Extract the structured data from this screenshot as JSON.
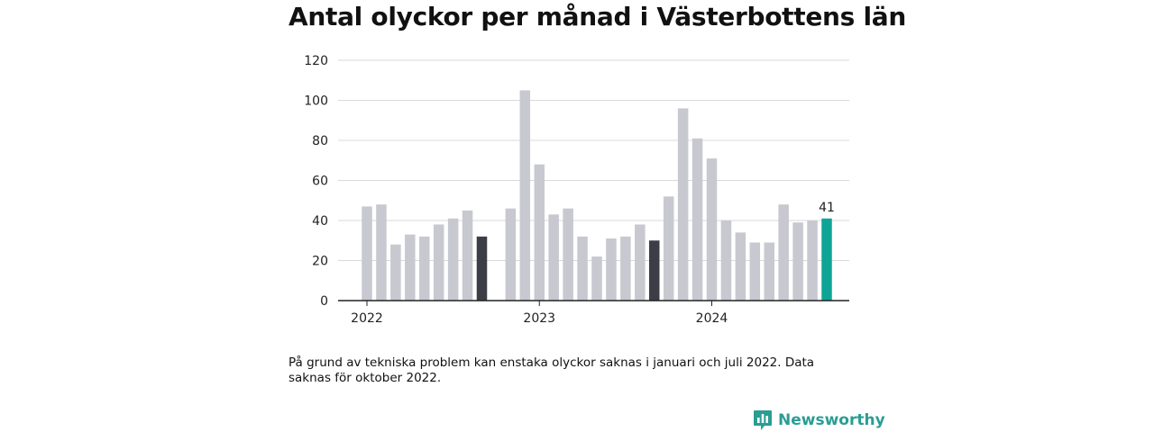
{
  "title": "Antal olyckor per månad i Västerbottens län",
  "note": "På grund av tekniska problem kan enstaka olyckor saknas i januari och juli 2022. Data saknas för oktober 2022.",
  "brand": {
    "name": "Newsworthy",
    "icon": "newsworthy-logo-icon"
  },
  "colors": {
    "default": "#c8c8d0",
    "highlight": "#3d3d47",
    "latest": "#0fa596",
    "axis": "#222222",
    "grid": "#d9d9d9"
  },
  "chart_data": {
    "type": "bar",
    "title": "Antal olyckor per månad i Västerbottens län",
    "xlabel": "",
    "ylabel": "",
    "ylim": [
      0,
      120
    ],
    "yticks": [
      0,
      20,
      40,
      60,
      80,
      100,
      120
    ],
    "year_labels": [
      {
        "label": "2022",
        "month_index": 0
      },
      {
        "label": "2023",
        "month_index": 12
      },
      {
        "label": "2024",
        "month_index": 24
      }
    ],
    "grid": true,
    "months": [
      "2022-01",
      "2022-02",
      "2022-03",
      "2022-04",
      "2022-05",
      "2022-06",
      "2022-07",
      "2022-08",
      "2022-09",
      "2022-10",
      "2022-11",
      "2022-12",
      "2023-01",
      "2023-02",
      "2023-03",
      "2023-04",
      "2023-05",
      "2023-06",
      "2023-07",
      "2023-08",
      "2023-09",
      "2023-10",
      "2023-11",
      "2023-12",
      "2024-01",
      "2024-02",
      "2024-03",
      "2024-04",
      "2024-05",
      "2024-06",
      "2024-07",
      "2024-08",
      "2024-09",
      "2024-10"
    ],
    "values": [
      47,
      48,
      28,
      33,
      32,
      38,
      41,
      45,
      32,
      null,
      46,
      105,
      68,
      43,
      46,
      32,
      22,
      31,
      32,
      38,
      30,
      52,
      96,
      81,
      71,
      40,
      34,
      29,
      29,
      48,
      39,
      40,
      41,
      null
    ],
    "highlight_months": [
      "2022-09",
      "2023-09"
    ],
    "latest_month": "2024-09",
    "data_labels": [
      {
        "month": "2024-09",
        "text": "41"
      }
    ]
  }
}
